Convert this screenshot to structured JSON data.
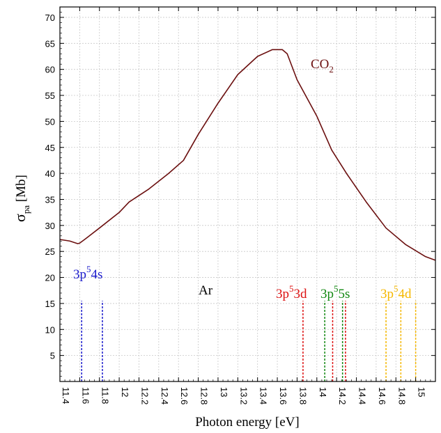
{
  "chart_data": {
    "type": "line",
    "xlabel": "Photon energy [eV]",
    "ylabel_main": "σ",
    "ylabel_sub": "pa",
    "ylabel_unit": "[Mb]",
    "xlim": [
      11.4,
      15.2
    ],
    "ylim": [
      0,
      72
    ],
    "grid": true,
    "x_ticks": [
      "11.4",
      "11.6",
      "11.8",
      "12",
      "12.2",
      "12.4",
      "12.6",
      "12.8",
      "13",
      "13.2",
      "13.4",
      "13.6",
      "13.8",
      "14",
      "14.2",
      "14.4",
      "14.6",
      "14.8",
      "15"
    ],
    "y_ticks": [
      "5",
      "10",
      "15",
      "20",
      "25",
      "30",
      "35",
      "40",
      "45",
      "50",
      "55",
      "60",
      "65",
      "70"
    ],
    "series": [
      {
        "name": "CO2",
        "color": "#6b0f0f",
        "x": [
          11.4,
          11.5,
          11.58,
          11.6,
          11.65,
          11.8,
          12.0,
          12.1,
          12.3,
          12.5,
          12.65,
          12.8,
          13.0,
          13.2,
          13.4,
          13.55,
          13.65,
          13.7,
          13.8,
          14.0,
          14.15,
          14.3,
          14.5,
          14.7,
          14.9,
          15.1,
          15.2
        ],
        "y": [
          27.3,
          27.0,
          26.5,
          26.6,
          27.3,
          29.5,
          32.5,
          34.5,
          37.0,
          40.0,
          42.5,
          47.5,
          53.5,
          59.0,
          62.5,
          63.8,
          63.8,
          63.0,
          58.0,
          51.0,
          44.5,
          40.0,
          34.5,
          29.5,
          26.3,
          24.0,
          23.3
        ]
      }
    ],
    "annotations": {
      "co2_label": "CO",
      "co2_sub": "2",
      "ar_label": "Ar"
    },
    "lines": [
      {
        "group": "4s",
        "color": "#1a1acc",
        "x": [
          11.62,
          11.83
        ]
      },
      {
        "group": "3d",
        "color": "#dd1111",
        "x": [
          13.86,
          14.16
        ]
      },
      {
        "group": "5s",
        "color": "#118811",
        "x": [
          14.08,
          14.26
        ]
      },
      {
        "group": "5s-extra",
        "color": "#dd1111",
        "x": [
          14.29
        ]
      },
      {
        "group": "4d",
        "color": "#f5b800",
        "x": [
          14.7,
          14.85,
          15.0
        ]
      }
    ],
    "level_labels": [
      {
        "id": "4s",
        "color": "#1a1acc",
        "base": "3p",
        "sup": "5",
        "tail": "4s"
      },
      {
        "id": "3d",
        "color": "#dd1111",
        "base": "3p",
        "sup": "5",
        "tail": "3d"
      },
      {
        "id": "5s",
        "color": "#118811",
        "base": "3p",
        "sup": "5",
        "tail": "5s"
      },
      {
        "id": "4d",
        "color": "#f5b800",
        "base": "3p",
        "sup": "5",
        "tail": "4d"
      }
    ]
  }
}
